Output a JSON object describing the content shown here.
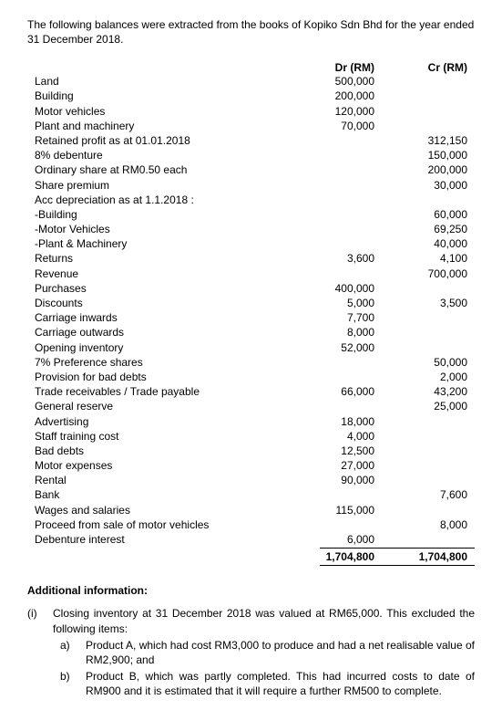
{
  "intro": "The following balances were extracted from the books of Kopiko Sdn Bhd for the year ended 31 December 2018.",
  "headers": {
    "dr": "Dr (RM)",
    "cr": "Cr (RM)"
  },
  "rows": [
    {
      "label": "Land",
      "dr": "500,000",
      "cr": ""
    },
    {
      "label": "Building",
      "dr": "200,000",
      "cr": ""
    },
    {
      "label": "Motor vehicles",
      "dr": "120,000",
      "cr": ""
    },
    {
      "label": "Plant and machinery",
      "dr": "70,000",
      "cr": ""
    },
    {
      "label": "Retained profit as at 01.01.2018",
      "dr": "",
      "cr": "312,150"
    },
    {
      "label": "8% debenture",
      "dr": "",
      "cr": "150,000"
    },
    {
      "label": "Ordinary share at RM0.50 each",
      "dr": "",
      "cr": "200,000"
    },
    {
      "label": "Share premium",
      "dr": "",
      "cr": "30,000"
    },
    {
      "label": "Acc depreciation as at 1.1.2018 :",
      "dr": "",
      "cr": ""
    },
    {
      "label": "-Building",
      "dr": "",
      "cr": "60,000"
    },
    {
      "label": "-Motor Vehicles",
      "dr": "",
      "cr": "69,250"
    },
    {
      "label": "-Plant & Machinery",
      "dr": "",
      "cr": "40,000"
    },
    {
      "label": "Returns",
      "dr": "3,600",
      "cr": "4,100"
    },
    {
      "label": "Revenue",
      "dr": "",
      "cr": "700,000"
    },
    {
      "label": "Purchases",
      "dr": "400,000",
      "cr": ""
    },
    {
      "label": "Discounts",
      "dr": "5,000",
      "cr": "3,500"
    },
    {
      "label": "Carriage inwards",
      "dr": "7,700",
      "cr": ""
    },
    {
      "label": "Carriage outwards",
      "dr": "8,000",
      "cr": ""
    },
    {
      "label": "Opening inventory",
      "dr": "52,000",
      "cr": ""
    },
    {
      "label": "7% Preference shares",
      "dr": "",
      "cr": "50,000"
    },
    {
      "label": "Provision for bad debts",
      "dr": "",
      "cr": "2,000"
    },
    {
      "label": "Trade receivables / Trade payable",
      "dr": "66,000",
      "cr": "43,200"
    },
    {
      "label": "General reserve",
      "dr": "",
      "cr": "25,000"
    },
    {
      "label": "Advertising",
      "dr": "18,000",
      "cr": ""
    },
    {
      "label": "Staff training cost",
      "dr": "4,000",
      "cr": ""
    },
    {
      "label": "Bad debts",
      "dr": "12,500",
      "cr": ""
    },
    {
      "label": "Motor expenses",
      "dr": "27,000",
      "cr": ""
    },
    {
      "label": "Rental",
      "dr": "90,000",
      "cr": ""
    },
    {
      "label": "Bank",
      "dr": "",
      "cr": "7,600"
    },
    {
      "label": "Wages and salaries",
      "dr": "115,000",
      "cr": ""
    },
    {
      "label": "Proceed from sale of motor vehicles",
      "dr": "",
      "cr": "8,000"
    },
    {
      "label": "Debenture interest",
      "dr": "6,000",
      "cr": ""
    }
  ],
  "totals": {
    "dr": "1,704,800",
    "cr": "1,704,800"
  },
  "additional": {
    "heading": "Additional information:",
    "item": {
      "num": "(i)",
      "text": "Closing inventory at 31 December 2018 was valued at RM65,000. This excluded the following items:",
      "subs": [
        {
          "letter": "a)",
          "text": "Product A, which had cost RM3,000 to produce and had a net realisable value of RM2,900; and"
        },
        {
          "letter": "b)",
          "text": "Product B, which was partly completed. This had incurred costs to date of RM900 and it is estimated that it will require a further RM500 to complete."
        }
      ]
    }
  }
}
